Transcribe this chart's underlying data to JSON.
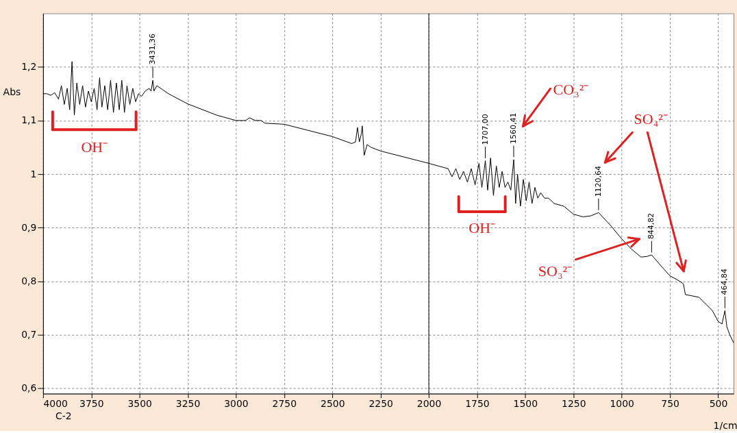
{
  "chart_data": {
    "type": "line",
    "xlabel": "1/cm",
    "ylabel": "Abs",
    "xlim": [
      4000,
      420
    ],
    "ylim": [
      0.59,
      1.3
    ],
    "xticks": [
      4000,
      3750,
      3500,
      3250,
      3000,
      2750,
      2500,
      2250,
      2000,
      1750,
      1500,
      1250,
      1000,
      750,
      500
    ],
    "yticks": [
      {
        "value": 0.6,
        "label": "0,6"
      },
      {
        "value": 0.7,
        "label": "0,7"
      },
      {
        "value": 0.8,
        "label": "0,8"
      },
      {
        "value": 0.9,
        "label": "0,9"
      },
      1,
      {
        "value": 1.1,
        "label": "1,1"
      },
      {
        "value": 1.2,
        "label": "1,2"
      }
    ],
    "grid": true,
    "ref_lines": [
      {
        "axis": "x",
        "value": 2000,
        "color": "#000000"
      }
    ],
    "series": [
      {
        "color": "#000000",
        "x": [
          4000,
          3980,
          3960,
          3940,
          3920,
          3905,
          3890,
          3875,
          3862,
          3850,
          3838,
          3825,
          3810,
          3795,
          3780,
          3765,
          3750,
          3735,
          3720,
          3707,
          3695,
          3680,
          3665,
          3650,
          3635,
          3620,
          3605,
          3592,
          3578,
          3565,
          3550,
          3535,
          3520,
          3505,
          3490,
          3470,
          3450,
          3440,
          3431,
          3425,
          3410,
          3390,
          3350,
          3250,
          3100,
          3000,
          2950,
          2930,
          2900,
          2870,
          2850,
          2750,
          2500,
          2400,
          2380,
          2370,
          2360,
          2350,
          2345,
          2335,
          2320,
          2300,
          2250,
          2000,
          1900,
          1880,
          1860,
          1840,
          1820,
          1800,
          1780,
          1760,
          1740,
          1725,
          1707,
          1695,
          1680,
          1665,
          1650,
          1635,
          1620,
          1605,
          1590,
          1575,
          1560,
          1550,
          1540,
          1525,
          1510,
          1495,
          1480,
          1465,
          1450,
          1435,
          1420,
          1400,
          1380,
          1350,
          1300,
          1250,
          1200,
          1160,
          1120,
          1060,
          1000,
          950,
          900,
          870,
          845,
          800,
          750,
          700,
          680,
          670,
          600,
          530,
          500,
          480,
          465,
          455,
          440,
          420
        ],
        "values": [
          1.15,
          1.15,
          1.147,
          1.152,
          1.14,
          1.165,
          1.13,
          1.16,
          1.12,
          1.21,
          1.11,
          1.17,
          1.13,
          1.165,
          1.125,
          1.155,
          1.135,
          1.16,
          1.12,
          1.18,
          1.125,
          1.165,
          1.12,
          1.175,
          1.115,
          1.17,
          1.12,
          1.175,
          1.115,
          1.165,
          1.13,
          1.16,
          1.135,
          1.15,
          1.145,
          1.155,
          1.16,
          1.155,
          1.175,
          1.155,
          1.165,
          1.16,
          1.15,
          1.131,
          1.11,
          1.1,
          1.1,
          1.105,
          1.1,
          1.1,
          1.095,
          1.093,
          1.07,
          1.057,
          1.06,
          1.087,
          1.06,
          1.075,
          1.09,
          1.035,
          1.055,
          1.05,
          1.043,
          1.02,
          1.01,
          0.995,
          1.01,
          0.99,
          1.005,
          0.985,
          1.01,
          0.98,
          1.02,
          0.975,
          1.025,
          0.97,
          1.03,
          0.96,
          1.015,
          0.975,
          1.005,
          0.975,
          0.985,
          0.97,
          1.027,
          0.945,
          1.0,
          0.94,
          0.99,
          0.95,
          0.985,
          0.945,
          0.975,
          0.955,
          0.965,
          0.955,
          0.955,
          0.945,
          0.94,
          0.925,
          0.92,
          0.922,
          0.928,
          0.905,
          0.879,
          0.86,
          0.845,
          0.846,
          0.849,
          0.83,
          0.81,
          0.8,
          0.795,
          0.775,
          0.77,
          0.745,
          0.725,
          0.72,
          0.745,
          0.715,
          0.7,
          0.685
        ]
      }
    ],
    "annotations": [
      {
        "text": "3431,36",
        "x": 3431,
        "y": 1.175
      },
      {
        "text": "1707,00",
        "x": 1707,
        "y": 1.025
      },
      {
        "text": "1560,41",
        "x": 1560,
        "y": 1.027
      },
      {
        "text": "1120,64",
        "x": 1120,
        "y": 0.928
      },
      {
        "text": "844,82",
        "x": 845,
        "y": 0.849
      },
      {
        "text": "464,84",
        "x": 465,
        "y": 0.745
      },
      "OH⁻",
      "OH⁻",
      "CO₃²⁻",
      "SO₄²⁻",
      "SO₃²⁻",
      "C-2"
    ]
  }
}
